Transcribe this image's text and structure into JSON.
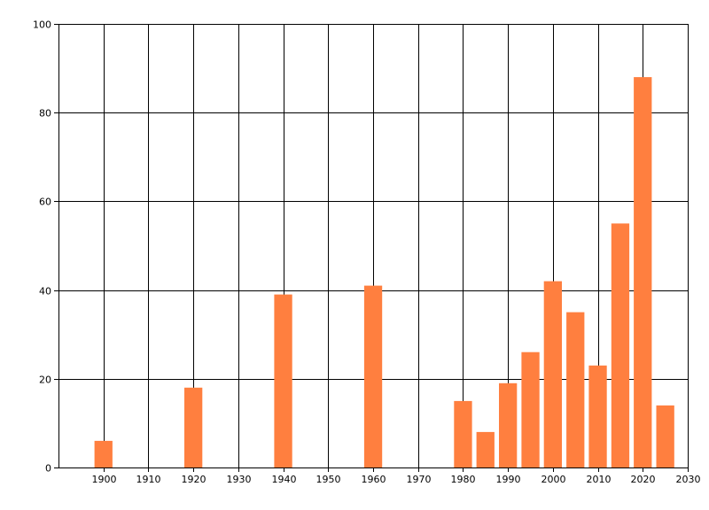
{
  "chart_data": {
    "type": "bar",
    "title": "",
    "xlabel": "",
    "ylabel": "",
    "x": [
      1900,
      1920,
      1940,
      1960,
      1980,
      1985,
      1990,
      1995,
      2000,
      2005,
      2010,
      2015,
      2020,
      2025
    ],
    "values": [
      6,
      18,
      39,
      41,
      15,
      8,
      19,
      26,
      42,
      35,
      23,
      55,
      88,
      14
    ],
    "bar_width": 4,
    "xlim": [
      1890,
      2030
    ],
    "ylim": [
      0,
      100
    ],
    "x_ticks": [
      1900,
      1910,
      1920,
      1930,
      1940,
      1950,
      1960,
      1970,
      1980,
      1990,
      2000,
      2010,
      2020,
      2030
    ],
    "y_ticks": [
      0,
      20,
      40,
      60,
      80,
      100
    ],
    "grid": true,
    "legend": "none",
    "colors": {
      "bar": "#FF7F3F",
      "grid": "#000000",
      "axis": "#000000",
      "background": "#ffffff"
    }
  }
}
